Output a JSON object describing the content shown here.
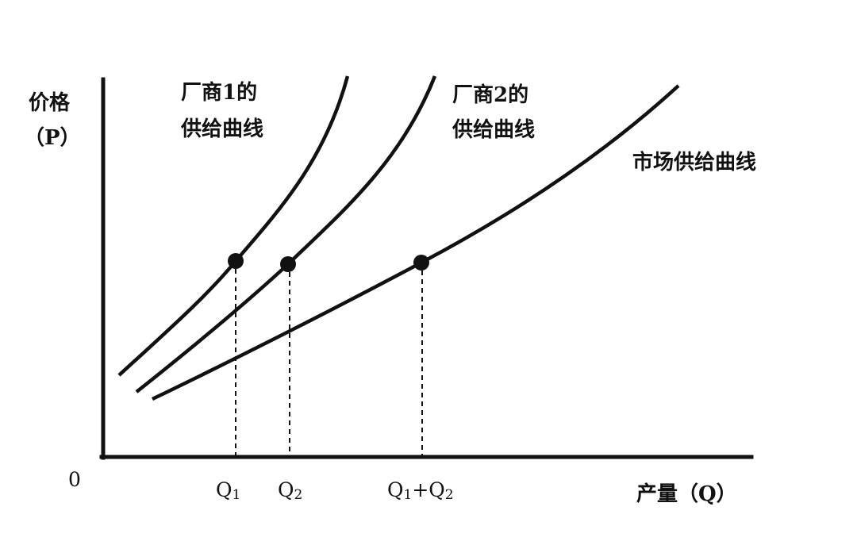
{
  "y_axis": {
    "label_line1": "价格",
    "label_line2": "（P）"
  },
  "x_axis": {
    "label": "产量（Q）",
    "origin": "0"
  },
  "ticks": {
    "q1": {
      "main": "Q",
      "sub": "1"
    },
    "q2": {
      "main": "Q",
      "sub": "2"
    },
    "q1q2": {
      "part1": "Q",
      "sub1": "1",
      "plus": "+Q",
      "sub2": "2"
    }
  },
  "curves": {
    "firm1": {
      "line1": "厂商1的",
      "line2": "供给曲线"
    },
    "firm2": {
      "line1": "厂商2的",
      "line2": "供给曲线"
    },
    "market": {
      "label": "市场供给曲线"
    }
  },
  "colors": {
    "ink": "#111111",
    "background": "#ffffff"
  }
}
